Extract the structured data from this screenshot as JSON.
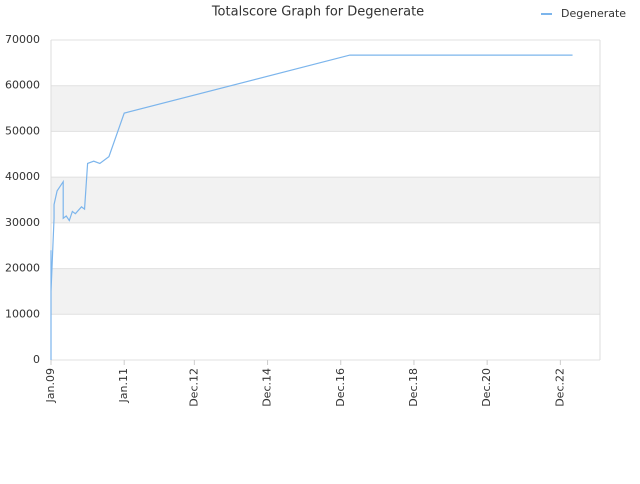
{
  "chart_data": {
    "type": "line",
    "title": "Totalscore Graph for Degenerate",
    "x": [
      "2009-01",
      "2009-01",
      "2009-01",
      "2009-02",
      "2009-02",
      "2009-03",
      "2009-04",
      "2009-05",
      "2009-05",
      "2009-06",
      "2009-07",
      "2009-08",
      "2009-09",
      "2009-11",
      "2009-12",
      "2010-01",
      "2010-03",
      "2010-05",
      "2010-08",
      "2011-01",
      "2017-03",
      "2023-04"
    ],
    "series": [
      {
        "name": "Degenerate",
        "color": "#7cb5ec",
        "values": [
          0,
          24000,
          15000,
          31000,
          34000,
          37000,
          38000,
          39000,
          31000,
          31500,
          30500,
          32500,
          32000,
          33500,
          33000,
          43000,
          43500,
          43000,
          44500,
          54000,
          66700,
          66700
        ]
      }
    ],
    "xlim": [
      "2009-01",
      "2024-01"
    ],
    "xticks": [
      {
        "value": "2009-01",
        "label": "Jan.09"
      },
      {
        "value": "2011-01",
        "label": "Jan.11"
      },
      {
        "value": "2012-12",
        "label": "Dec.12"
      },
      {
        "value": "2014-12",
        "label": "Dec.14"
      },
      {
        "value": "2016-12",
        "label": "Dec.16"
      },
      {
        "value": "2018-12",
        "label": "Dec.18"
      },
      {
        "value": "2020-12",
        "label": "Dec.20"
      },
      {
        "value": "2022-12",
        "label": "Dec.22"
      }
    ],
    "ylim": [
      0,
      70000
    ],
    "yticks": [
      0,
      10000,
      20000,
      30000,
      40000,
      50000,
      60000,
      70000
    ],
    "grid": true,
    "legend": "top-right"
  }
}
